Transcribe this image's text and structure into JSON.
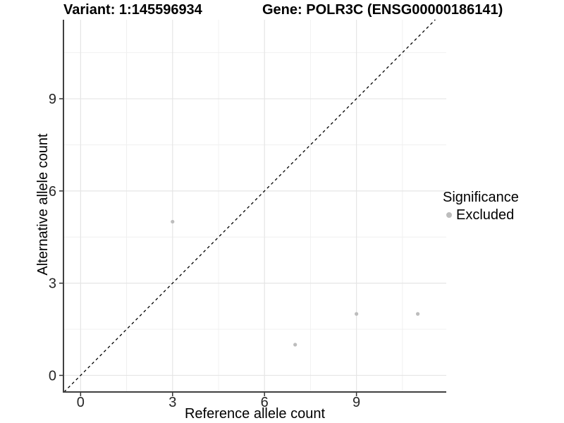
{
  "chart_data": {
    "type": "scatter",
    "title_left": "Variant: 1:145596934",
    "title_right": "Gene: POLR3C (ENSG00000186141)",
    "xlabel": "Reference allele count",
    "ylabel": "Alternative allele count",
    "xlim": [
      -0.56,
      11.93
    ],
    "ylim": [
      -0.54,
      11.57
    ],
    "x_ticks": [
      0,
      3,
      6,
      9
    ],
    "y_ticks": [
      0,
      3,
      6,
      9
    ],
    "x_minor_ticks": [
      1.5,
      4.5,
      7.5,
      10.5
    ],
    "y_minor_ticks": [
      1.5,
      4.5,
      7.5,
      10.5
    ],
    "grid": true,
    "series": [
      {
        "name": "Excluded",
        "color": "#bdbdbd",
        "points": [
          [
            3,
            5
          ],
          [
            7,
            1
          ],
          [
            9,
            2
          ],
          [
            11,
            2
          ]
        ]
      }
    ],
    "reference_line": {
      "type": "identity",
      "style": "dashed",
      "color": "#000000"
    },
    "legend": {
      "title": "Significance",
      "position": "right",
      "items": [
        {
          "label": "Excluded",
          "color": "#bdbdbd"
        }
      ]
    },
    "colors": {
      "background": "#ffffff",
      "grid_major": "#e5e5e5",
      "grid_minor": "#f0f0f0",
      "axis_line": "#404040",
      "tick_mark": "#333333",
      "tick_label": "#262626"
    }
  }
}
